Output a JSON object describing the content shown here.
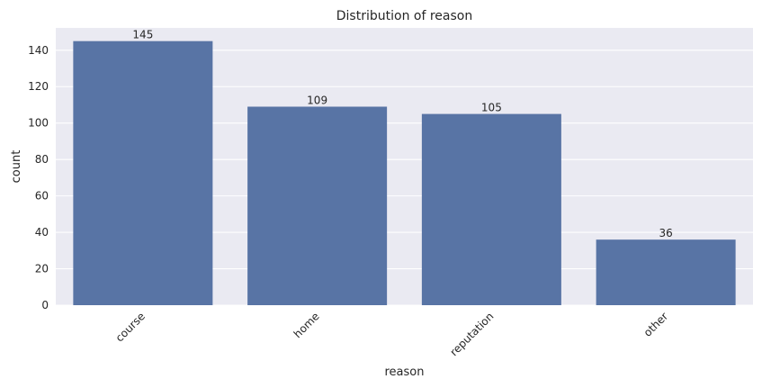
{
  "chart_data": {
    "type": "bar",
    "title": "Distribution of reason",
    "xlabel": "reason",
    "ylabel": "count",
    "categories": [
      "course",
      "home",
      "reputation",
      "other"
    ],
    "values": [
      145,
      109,
      105,
      36
    ],
    "data_labels": [
      "145",
      "109",
      "105",
      "36"
    ],
    "ylim": [
      0,
      152.25
    ],
    "yticks": [
      0,
      20,
      40,
      60,
      80,
      100,
      120,
      140
    ],
    "ytick_labels": [
      "0",
      "20",
      "40",
      "60",
      "80",
      "100",
      "120",
      "140"
    ],
    "grid": true,
    "x_tick_rotation_deg": 45,
    "colors": {
      "bar": "#5874a5",
      "plot_background": "#eaeaf2",
      "grid": "#ffffff",
      "text": "#262626"
    }
  }
}
